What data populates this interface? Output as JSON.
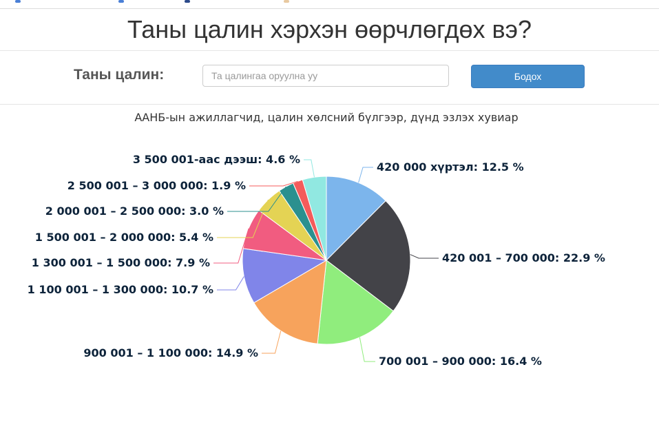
{
  "page": {
    "title": "Таны цалин хэрхэн өөрчлөгдөх вэ?",
    "salary_label": "Таны цалин:",
    "salary_placeholder": "Та цалингаа оруулна уу",
    "salary_value": "",
    "submit_label": "Бодох"
  },
  "chart_data": {
    "type": "pie",
    "title": "ААНБ-ын ажиллагчид, цалин хөлсний бүлгээр, дүнд эзлэх хувиар",
    "categories": [
      "420 000 хүртэл",
      "420 001 – 700 000",
      "700 001 – 900 000",
      "900 001 – 1 100 000",
      "1 100 001 – 1 300 000",
      "1 300 001 – 1 500 000",
      "1 500 001 – 2 000 000",
      "2 000 001 – 2 500 000",
      "2 500 001 – 3 000 000",
      "3 500 001-аас дээш"
    ],
    "values": [
      12.5,
      22.9,
      16.4,
      14.9,
      10.7,
      7.9,
      5.4,
      3.0,
      1.9,
      4.6
    ],
    "labels": [
      "420 000 хүртэл: 12.5 %",
      "420 001 – 700 000: 22.9 %",
      "700 001 – 900 000: 16.4 %",
      "900 001 – 1 100 000: 14.9 %",
      "1 100 001 – 1 300 000: 10.7 %",
      "1 300 001 – 1 500 000: 7.9 %",
      "1 500 001 – 2 000 000: 5.4 %",
      "2 000 001 – 2 500 000: 3.0 %",
      "2 500 001 – 3 000 000: 1.9 %",
      "3 500 001-аас дээш: 4.6 %"
    ],
    "colors": [
      "#7cb5ec",
      "#434348",
      "#90ed7d",
      "#f7a35c",
      "#8085e9",
      "#f15c80",
      "#e4d354",
      "#2b908f",
      "#f45b5b",
      "#91e8e1"
    ]
  }
}
